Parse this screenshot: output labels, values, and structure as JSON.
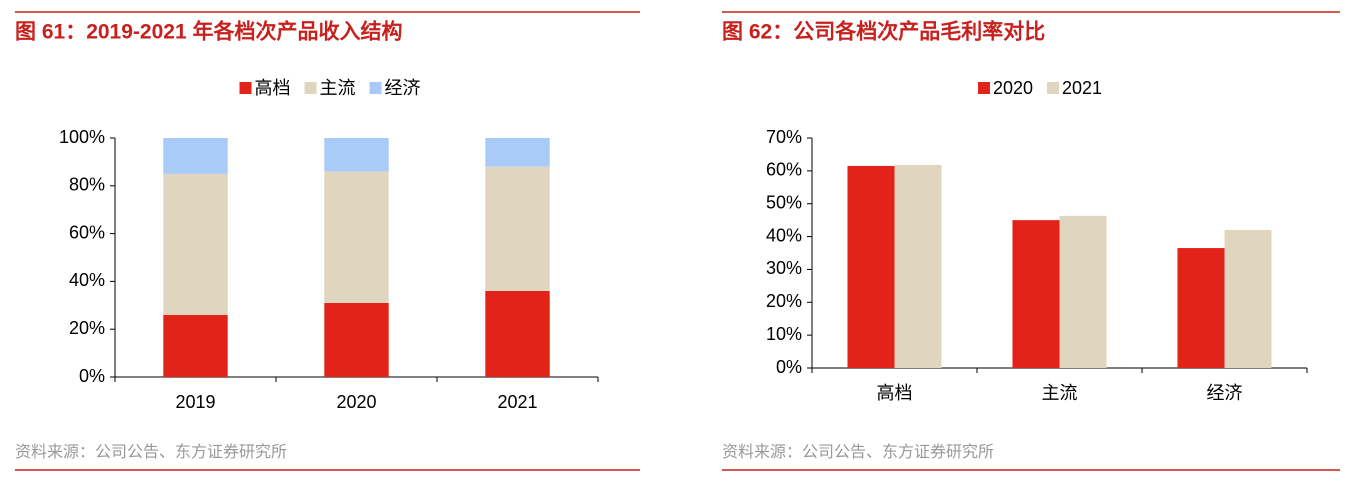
{
  "chart_data": [
    {
      "type": "stacked_bar",
      "title": "图 61：2019-2021 年各档次产品收入结构",
      "categories": [
        "2019",
        "2020",
        "2021"
      ],
      "series": [
        {
          "name": "高档",
          "color": "#e2231a",
          "values": [
            26,
            31,
            36
          ]
        },
        {
          "name": "主流",
          "color": "#e0d6bf",
          "values": [
            59,
            55,
            52
          ]
        },
        {
          "name": "经济",
          "color": "#a9cbf7",
          "values": [
            15,
            14,
            12
          ]
        }
      ],
      "ylim": [
        0,
        100
      ],
      "yticks": [
        {
          "value": 0,
          "label": "0%"
        },
        {
          "value": 20,
          "label": "20%"
        },
        {
          "value": 40,
          "label": "40%"
        },
        {
          "value": 60,
          "label": "60%"
        },
        {
          "value": 80,
          "label": "80%"
        },
        {
          "value": 100,
          "label": "100%"
        }
      ],
      "legend": "top",
      "source": "资料来源：公司公告、东方证券研究所"
    },
    {
      "type": "bar",
      "title": "图 62：公司各档次产品毛利率对比",
      "categories": [
        "高档",
        "主流",
        "经济"
      ],
      "series": [
        {
          "name": "2020",
          "color": "#e2231a",
          "values": [
            61.5,
            45.0,
            36.5
          ]
        },
        {
          "name": "2021",
          "color": "#e0d6bf",
          "values": [
            61.8,
            46.3,
            42.0
          ]
        }
      ],
      "ylim": [
        0,
        70
      ],
      "yticks": [
        {
          "value": 0,
          "label": "0%"
        },
        {
          "value": 10,
          "label": "10%"
        },
        {
          "value": 20,
          "label": "20%"
        },
        {
          "value": 30,
          "label": "30%"
        },
        {
          "value": 40,
          "label": "40%"
        },
        {
          "value": 50,
          "label": "50%"
        },
        {
          "value": 60,
          "label": "60%"
        },
        {
          "value": 70,
          "label": "70%"
        }
      ],
      "legend": "top",
      "source": "资料来源：公司公告、东方证券研究所"
    }
  ]
}
